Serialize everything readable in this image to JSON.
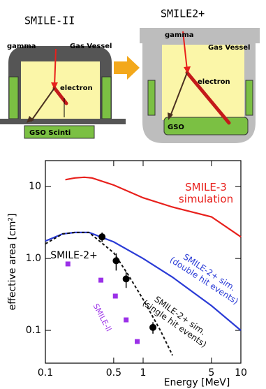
{
  "diagram": {
    "panels": [
      {
        "title": "SMILE-II",
        "gamma": "gamma",
        "vessel": "Gas Vessel",
        "electron": "electron",
        "scintillator": "GSO Scinti"
      },
      {
        "title": "SMILE2+",
        "gamma": "gamma",
        "vessel": "Gas Vessel",
        "electron": "electron",
        "scintillator": "GSO"
      }
    ]
  },
  "chart_data": {
    "type": "line",
    "xlabel": "Energy [MeV]",
    "ylabel": "effective area [cm²]",
    "log_x": true,
    "log_y": true,
    "xlim": [
      0.1,
      10
    ],
    "ylim": [
      0.035,
      23
    ],
    "xticks": [
      0.1,
      0.5,
      1,
      5,
      10
    ],
    "yticks": [
      0.1,
      {
        "value": 1,
        "label": "1.0"
      },
      10
    ],
    "series": [
      {
        "name_lines": [
          "SMILE-3",
          "simulation"
        ],
        "type": "line",
        "color": "#e8201c",
        "dash": false,
        "x": [
          0.16,
          0.2,
          0.25,
          0.3,
          0.5,
          1,
          2,
          5,
          10
        ],
        "values": [
          12.5,
          13.2,
          13.5,
          13.2,
          10.5,
          7,
          5.2,
          3.8,
          2
        ]
      },
      {
        "name_lines": [
          "SMILE-2+ sim.",
          "(double hit events)"
        ],
        "type": "line",
        "color": "#2a3bd6",
        "dash": false,
        "x": [
          0.1,
          0.15,
          0.2,
          0.28,
          0.5,
          1,
          2,
          5,
          10
        ],
        "values": [
          1.75,
          2.2,
          2.3,
          2.3,
          1.7,
          1,
          0.55,
          0.22,
          0.1
        ]
      },
      {
        "name_lines": [
          "SMILE-2+ sim.",
          "(single hit events)"
        ],
        "type": "line",
        "color": "#111111",
        "dash": true,
        "x": [
          0.1,
          0.15,
          0.2,
          0.28,
          0.5,
          0.7,
          1,
          1.5,
          2
        ],
        "values": [
          1.6,
          2.2,
          2.3,
          2.3,
          1.2,
          0.6,
          0.27,
          0.1,
          0.045
        ]
      },
      {
        "name_lines": [
          "SMILE-2+"
        ],
        "type": "scatter",
        "marker": "circle",
        "color": "#000000",
        "x": [
          0.38,
          0.53,
          0.67,
          1.26
        ],
        "values": [
          2,
          0.93,
          0.52,
          0.11
        ],
        "errors": [
          0.3,
          0.25,
          0.13,
          0.02
        ]
      },
      {
        "name_lines": [
          "SMILE-II"
        ],
        "type": "scatter",
        "marker": "square",
        "color": "#9b30e8",
        "x": [
          0.17,
          0.37,
          0.52,
          0.67,
          0.87
        ],
        "values": [
          0.84,
          0.5,
          0.3,
          0.14,
          0.07
        ]
      }
    ]
  }
}
